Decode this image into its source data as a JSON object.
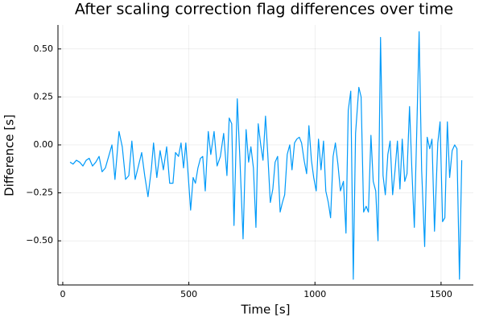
{
  "chart_data": {
    "type": "line",
    "title": "After scaling correction flag differences over time",
    "x_label": "Time [s]",
    "y_label": "Difference [s]",
    "x": [
      29,
      41,
      54,
      67,
      80,
      93,
      105,
      118,
      131,
      144,
      156,
      169,
      182,
      195,
      207,
      223,
      236,
      249,
      262,
      274,
      287,
      300,
      313,
      325,
      338,
      351,
      360,
      373,
      386,
      399,
      412,
      424,
      437,
      447,
      459,
      469,
      479,
      488,
      498,
      507,
      517,
      526,
      536,
      546,
      555,
      565,
      577,
      587,
      600,
      612,
      625,
      638,
      651,
      660,
      670,
      679,
      692,
      702,
      715,
      727,
      737,
      746,
      756,
      766,
      775,
      785,
      794,
      804,
      813,
      823,
      833,
      842,
      852,
      862,
      871,
      880,
      890,
      900,
      909,
      919,
      928,
      938,
      947,
      957,
      967,
      976,
      986,
      995,
      1005,
      1014,
      1024,
      1034,
      1043,
      1053,
      1062,
      1072,
      1081,
      1091,
      1101,
      1113,
      1123,
      1132,
      1142,
      1152,
      1161,
      1174,
      1183,
      1193,
      1203,
      1212,
      1222,
      1231,
      1241,
      1250,
      1260,
      1270,
      1279,
      1289,
      1298,
      1308,
      1317,
      1327,
      1337,
      1346,
      1356,
      1365,
      1375,
      1384,
      1394,
      1404,
      1413,
      1423,
      1435,
      1445,
      1455,
      1464,
      1474,
      1487,
      1496,
      1506,
      1515,
      1525,
      1534,
      1544,
      1554,
      1563,
      1573,
      1582
    ],
    "series": [
      {
        "color": "#009af9",
        "values": [
          -0.09,
          -0.1,
          -0.08,
          -0.09,
          -0.11,
          -0.08,
          -0.07,
          -0.11,
          -0.09,
          -0.06,
          -0.14,
          -0.12,
          -0.06,
          0.0,
          -0.18,
          0.07,
          -0.01,
          -0.18,
          -0.16,
          0.02,
          -0.18,
          -0.11,
          -0.04,
          -0.16,
          -0.27,
          -0.13,
          0.01,
          -0.17,
          -0.03,
          -0.13,
          -0.01,
          -0.2,
          -0.2,
          -0.04,
          -0.06,
          0.01,
          -0.12,
          0.01,
          -0.17,
          -0.34,
          -0.17,
          -0.2,
          -0.12,
          -0.07,
          -0.06,
          -0.24,
          0.07,
          -0.05,
          0.07,
          -0.11,
          -0.06,
          0.06,
          -0.16,
          0.14,
          0.11,
          -0.42,
          0.24,
          -0.06,
          -0.49,
          0.08,
          -0.09,
          -0.01,
          -0.12,
          -0.43,
          0.11,
          0.0,
          -0.08,
          0.15,
          -0.05,
          -0.3,
          -0.23,
          -0.09,
          -0.06,
          -0.35,
          -0.3,
          -0.26,
          -0.05,
          0.0,
          -0.13,
          0.01,
          0.03,
          0.04,
          0.01,
          -0.08,
          -0.15,
          0.1,
          -0.08,
          -0.17,
          -0.24,
          0.03,
          -0.13,
          0.02,
          -0.24,
          -0.3,
          -0.38,
          -0.06,
          0.01,
          -0.1,
          -0.24,
          -0.19,
          -0.46,
          0.18,
          0.28,
          -0.7,
          0.06,
          0.3,
          0.25,
          -0.35,
          -0.32,
          -0.35,
          0.05,
          -0.19,
          -0.24,
          -0.5,
          0.56,
          -0.16,
          -0.26,
          -0.05,
          0.02,
          -0.26,
          -0.14,
          0.02,
          -0.23,
          0.03,
          -0.19,
          -0.15,
          0.2,
          -0.12,
          -0.43,
          0.09,
          0.59,
          -0.13,
          -0.53,
          0.04,
          -0.02,
          0.03,
          -0.45,
          0.01,
          0.12,
          -0.4,
          -0.38,
          0.12,
          -0.17,
          -0.03,
          0.0,
          -0.02,
          -0.7,
          -0.08
        ]
      }
    ],
    "xlim": [
      -19,
      1628
    ],
    "xticks": [
      0,
      500,
      1000,
      1500
    ],
    "ylim": [
      -0.73,
      0.625
    ],
    "yticks": [
      {
        "value": -0.5,
        "label": "−0.50"
      },
      {
        "value": -0.25,
        "label": "−0.25"
      },
      {
        "value": 0,
        "label": "0.00"
      },
      {
        "value": 0.25,
        "label": "0.25"
      },
      {
        "value": 0.5,
        "label": "0.50"
      }
    ],
    "grid": true
  }
}
